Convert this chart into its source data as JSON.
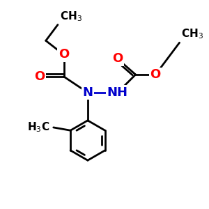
{
  "bg_color": "#ffffff",
  "bond_color": "#000000",
  "N_color": "#0000cc",
  "O_color": "#ff0000",
  "lw": 2.0,
  "fontsize": 13,
  "fontsize_label": 11,
  "fig_w": 3.0,
  "fig_h": 3.0,
  "dpi": 100,
  "xlim": [
    0,
    10
  ],
  "ylim": [
    0,
    10
  ]
}
